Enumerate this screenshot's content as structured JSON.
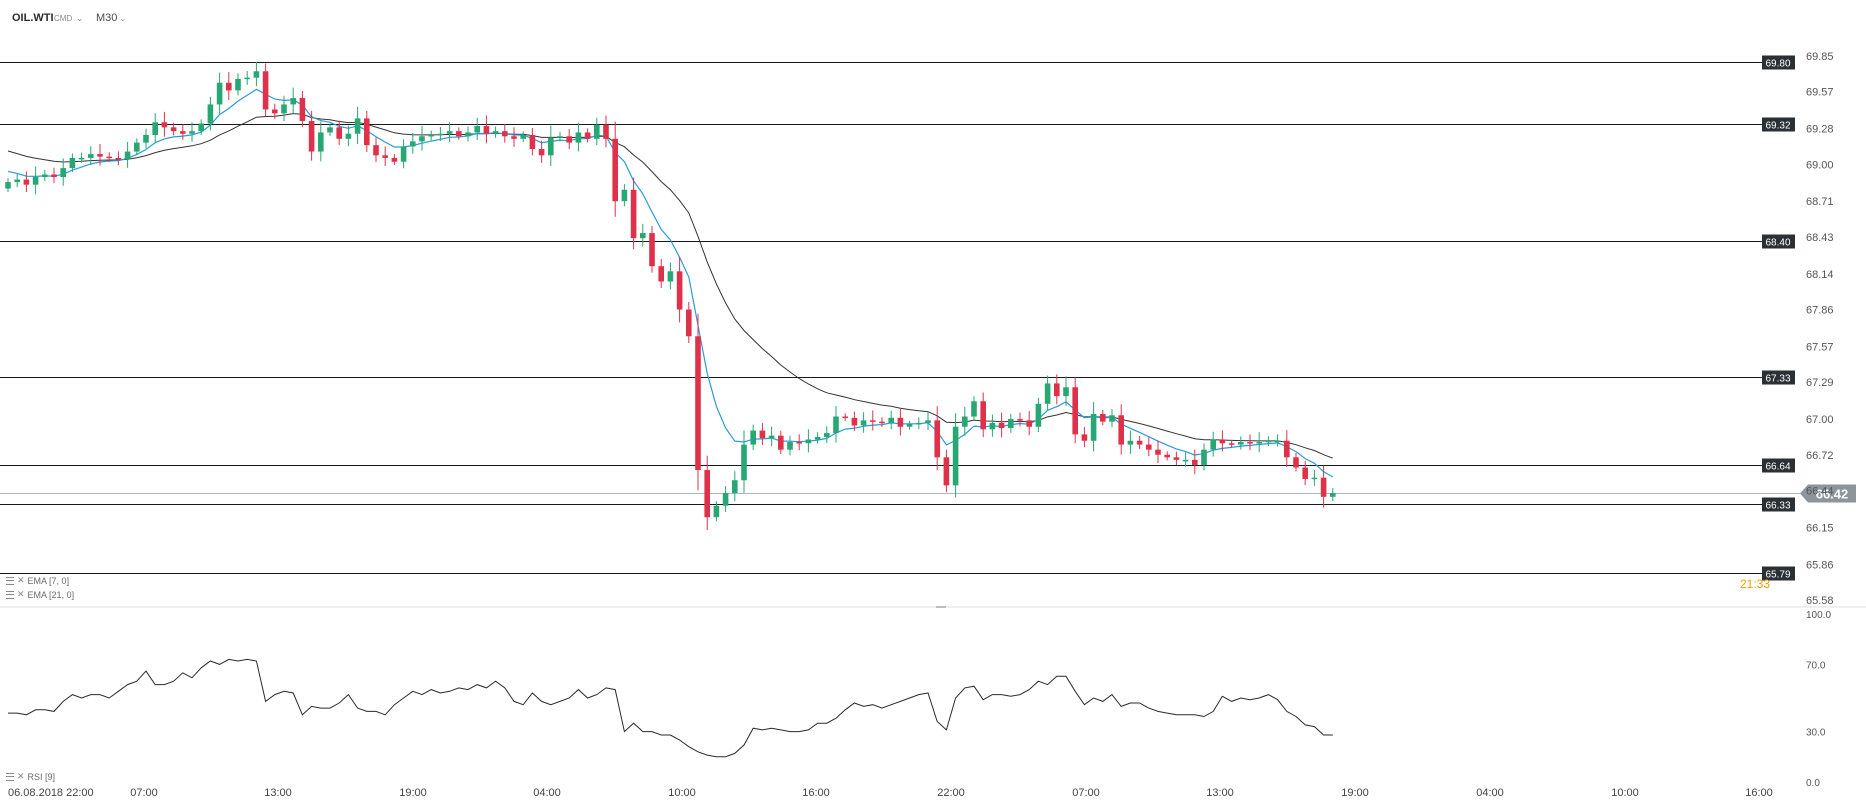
{
  "header": {
    "symbol": "OIL.WTI",
    "market": "CMD",
    "timeframe": "M30"
  },
  "indicators": {
    "ema7": "EMA [7, 0]",
    "ema21": "EMA [21, 0]",
    "rsi": "RSI [9]"
  },
  "countdown": "21:33",
  "colors": {
    "up": "#27a773",
    "down": "#e0314b",
    "ema7": "#2b9bd8",
    "ema21": "#333333",
    "level_line": "#1a1a1a",
    "level_tag_bg": "#2a3036",
    "last_tag_bg": "#8c959b",
    "countdown": "#f0a000"
  },
  "chart_data": [
    {
      "type": "candlestick",
      "title": "OIL.WTI",
      "ylim": [
        65.58,
        69.85
      ],
      "y_ticks": [
        "69.85",
        "69.57",
        "69.28",
        "69.00",
        "68.71",
        "68.43",
        "68.14",
        "67.86",
        "67.57",
        "67.29",
        "67.00",
        "66.72",
        "66.44",
        "66.15",
        "65.86",
        "65.58"
      ],
      "x_ticks": [
        "06.08.2018  22:00",
        "07:00",
        "13:00",
        "19:00",
        "04:00",
        "10:00",
        "16:00",
        "22:00",
        "07:00",
        "13:00",
        "19:00",
        "04:00",
        "10:00",
        "16:00"
      ],
      "levels": [
        "69.80",
        "69.32",
        "68.40",
        "67.33",
        "66.64",
        "66.33",
        "65.79"
      ],
      "last_price": "66.42",
      "close": [
        68.86,
        68.88,
        68.84,
        68.9,
        68.92,
        68.9,
        68.97,
        69.05,
        69.05,
        69.08,
        69.06,
        69.05,
        69.04,
        69.1,
        69.17,
        69.23,
        69.33,
        69.29,
        69.26,
        69.24,
        69.26,
        69.32,
        69.47,
        69.64,
        69.58,
        69.67,
        69.68,
        69.73,
        69.43,
        69.4,
        69.47,
        69.52,
        69.34,
        69.1,
        69.25,
        69.29,
        69.2,
        69.24,
        69.36,
        69.15,
        69.07,
        69.05,
        69.02,
        69.14,
        69.18,
        69.22,
        69.23,
        69.24,
        69.26,
        69.22,
        69.25,
        69.3,
        69.24,
        69.26,
        69.22,
        69.2,
        69.23,
        69.12,
        69.07,
        69.21,
        69.22,
        69.17,
        69.25,
        69.2,
        69.31,
        69.2,
        68.71,
        68.8,
        68.42,
        68.46,
        68.2,
        68.08,
        68.16,
        67.86,
        67.65,
        66.6,
        66.23,
        66.32,
        66.42,
        66.52,
        66.8,
        66.91,
        66.85,
        66.87,
        66.76,
        66.82,
        66.81,
        66.84,
        66.86,
        66.89,
        67.02,
        67.01,
        66.95,
        66.99,
        66.98,
        66.97,
        67.01,
        66.94,
        66.96,
        66.97,
        66.99,
        66.7,
        66.48,
        66.94,
        67.02,
        67.14,
        66.92,
        66.97,
        66.93,
        67.0,
        66.99,
        66.94,
        67.12,
        67.28,
        67.18,
        67.25,
        66.88,
        66.83,
        67.04,
        66.98,
        67.03,
        66.8,
        66.83,
        66.8,
        66.76,
        66.72,
        66.7,
        66.68,
        66.68,
        66.64,
        66.76,
        66.84,
        66.81,
        66.8,
        66.82,
        66.81,
        66.82,
        66.83,
        66.83,
        66.7,
        66.62,
        66.53,
        66.54,
        66.39,
        66.42
      ],
      "rsi": {
        "ylim": [
          0,
          100
        ],
        "y_ticks": [
          "100.0",
          "70.0",
          "30.0",
          "0.0"
        ],
        "values": [
          41,
          41,
          40,
          43,
          43,
          42,
          48,
          52,
          50,
          52,
          52,
          50,
          54,
          58,
          60,
          66,
          58,
          58,
          60,
          65,
          62,
          68,
          72,
          70,
          73,
          72,
          73,
          72,
          48,
          52,
          54,
          53,
          40,
          45,
          44,
          44,
          47,
          52,
          44,
          42,
          42,
          40,
          46,
          50,
          54,
          52,
          55,
          53,
          54,
          56,
          55,
          58,
          56,
          60,
          56,
          48,
          46,
          53,
          48,
          46,
          48,
          50,
          55,
          50,
          52,
          56,
          55,
          30,
          35,
          30,
          30,
          28,
          28,
          25,
          21,
          18,
          16,
          15,
          15,
          17,
          22,
          32,
          31,
          32,
          31,
          30,
          30,
          31,
          35,
          35,
          38,
          43,
          47,
          45,
          46,
          44,
          46,
          48,
          50,
          52,
          53,
          36,
          31,
          50,
          56,
          57,
          49,
          52,
          52,
          51,
          52,
          55,
          60,
          58,
          63,
          63,
          54,
          46,
          50,
          48,
          52,
          45,
          47,
          47,
          44,
          42,
          41,
          40,
          40,
          40,
          39,
          42,
          51,
          48,
          50,
          49,
          50,
          52,
          49,
          42,
          39,
          34,
          33,
          28,
          28
        ]
      }
    }
  ]
}
